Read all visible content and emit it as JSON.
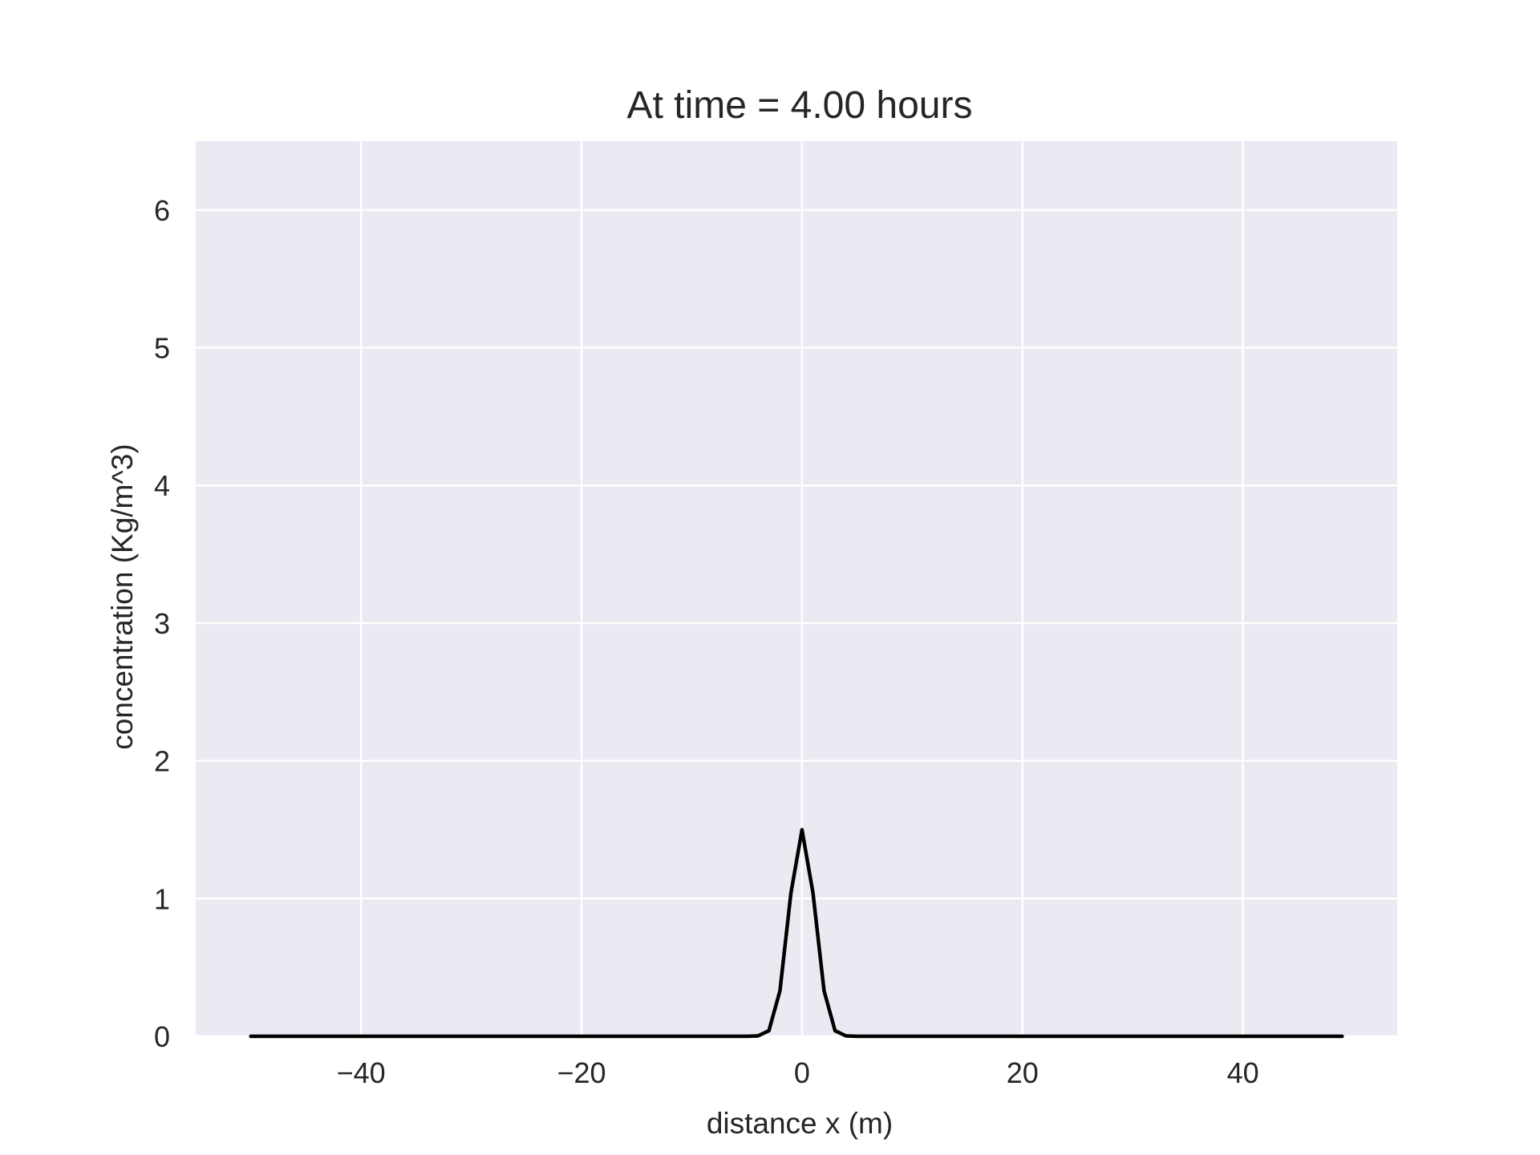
{
  "chart_data": {
    "type": "line",
    "title": "At time = 4.00 hours",
    "xlabel": "distance x (m)",
    "ylabel": "concentration (Kg/m^3)",
    "xlim": [
      -55,
      54
    ],
    "ylim": [
      0,
      6.5
    ],
    "xticks": [
      -40,
      -20,
      0,
      20,
      40
    ],
    "xtick_labels": [
      "−40",
      "−20",
      "0",
      "20",
      "40"
    ],
    "yticks": [
      0,
      1,
      2,
      3,
      4,
      5,
      6
    ],
    "ytick_labels": [
      "0",
      "1",
      "2",
      "3",
      "4",
      "5",
      "6"
    ],
    "grid": true,
    "background": "#eaeaf2",
    "grid_color": "#ffffff",
    "series": [
      {
        "color": "#000000",
        "x": [
          -50,
          -10,
          -5,
          -4,
          -3,
          -2,
          -1,
          0,
          1,
          2,
          3,
          4,
          5,
          10,
          49
        ],
        "y": [
          0,
          0,
          0,
          0.003,
          0.04,
          0.33,
          1.04,
          1.5,
          1.04,
          0.33,
          0.04,
          0.003,
          0,
          0,
          0
        ]
      }
    ]
  }
}
